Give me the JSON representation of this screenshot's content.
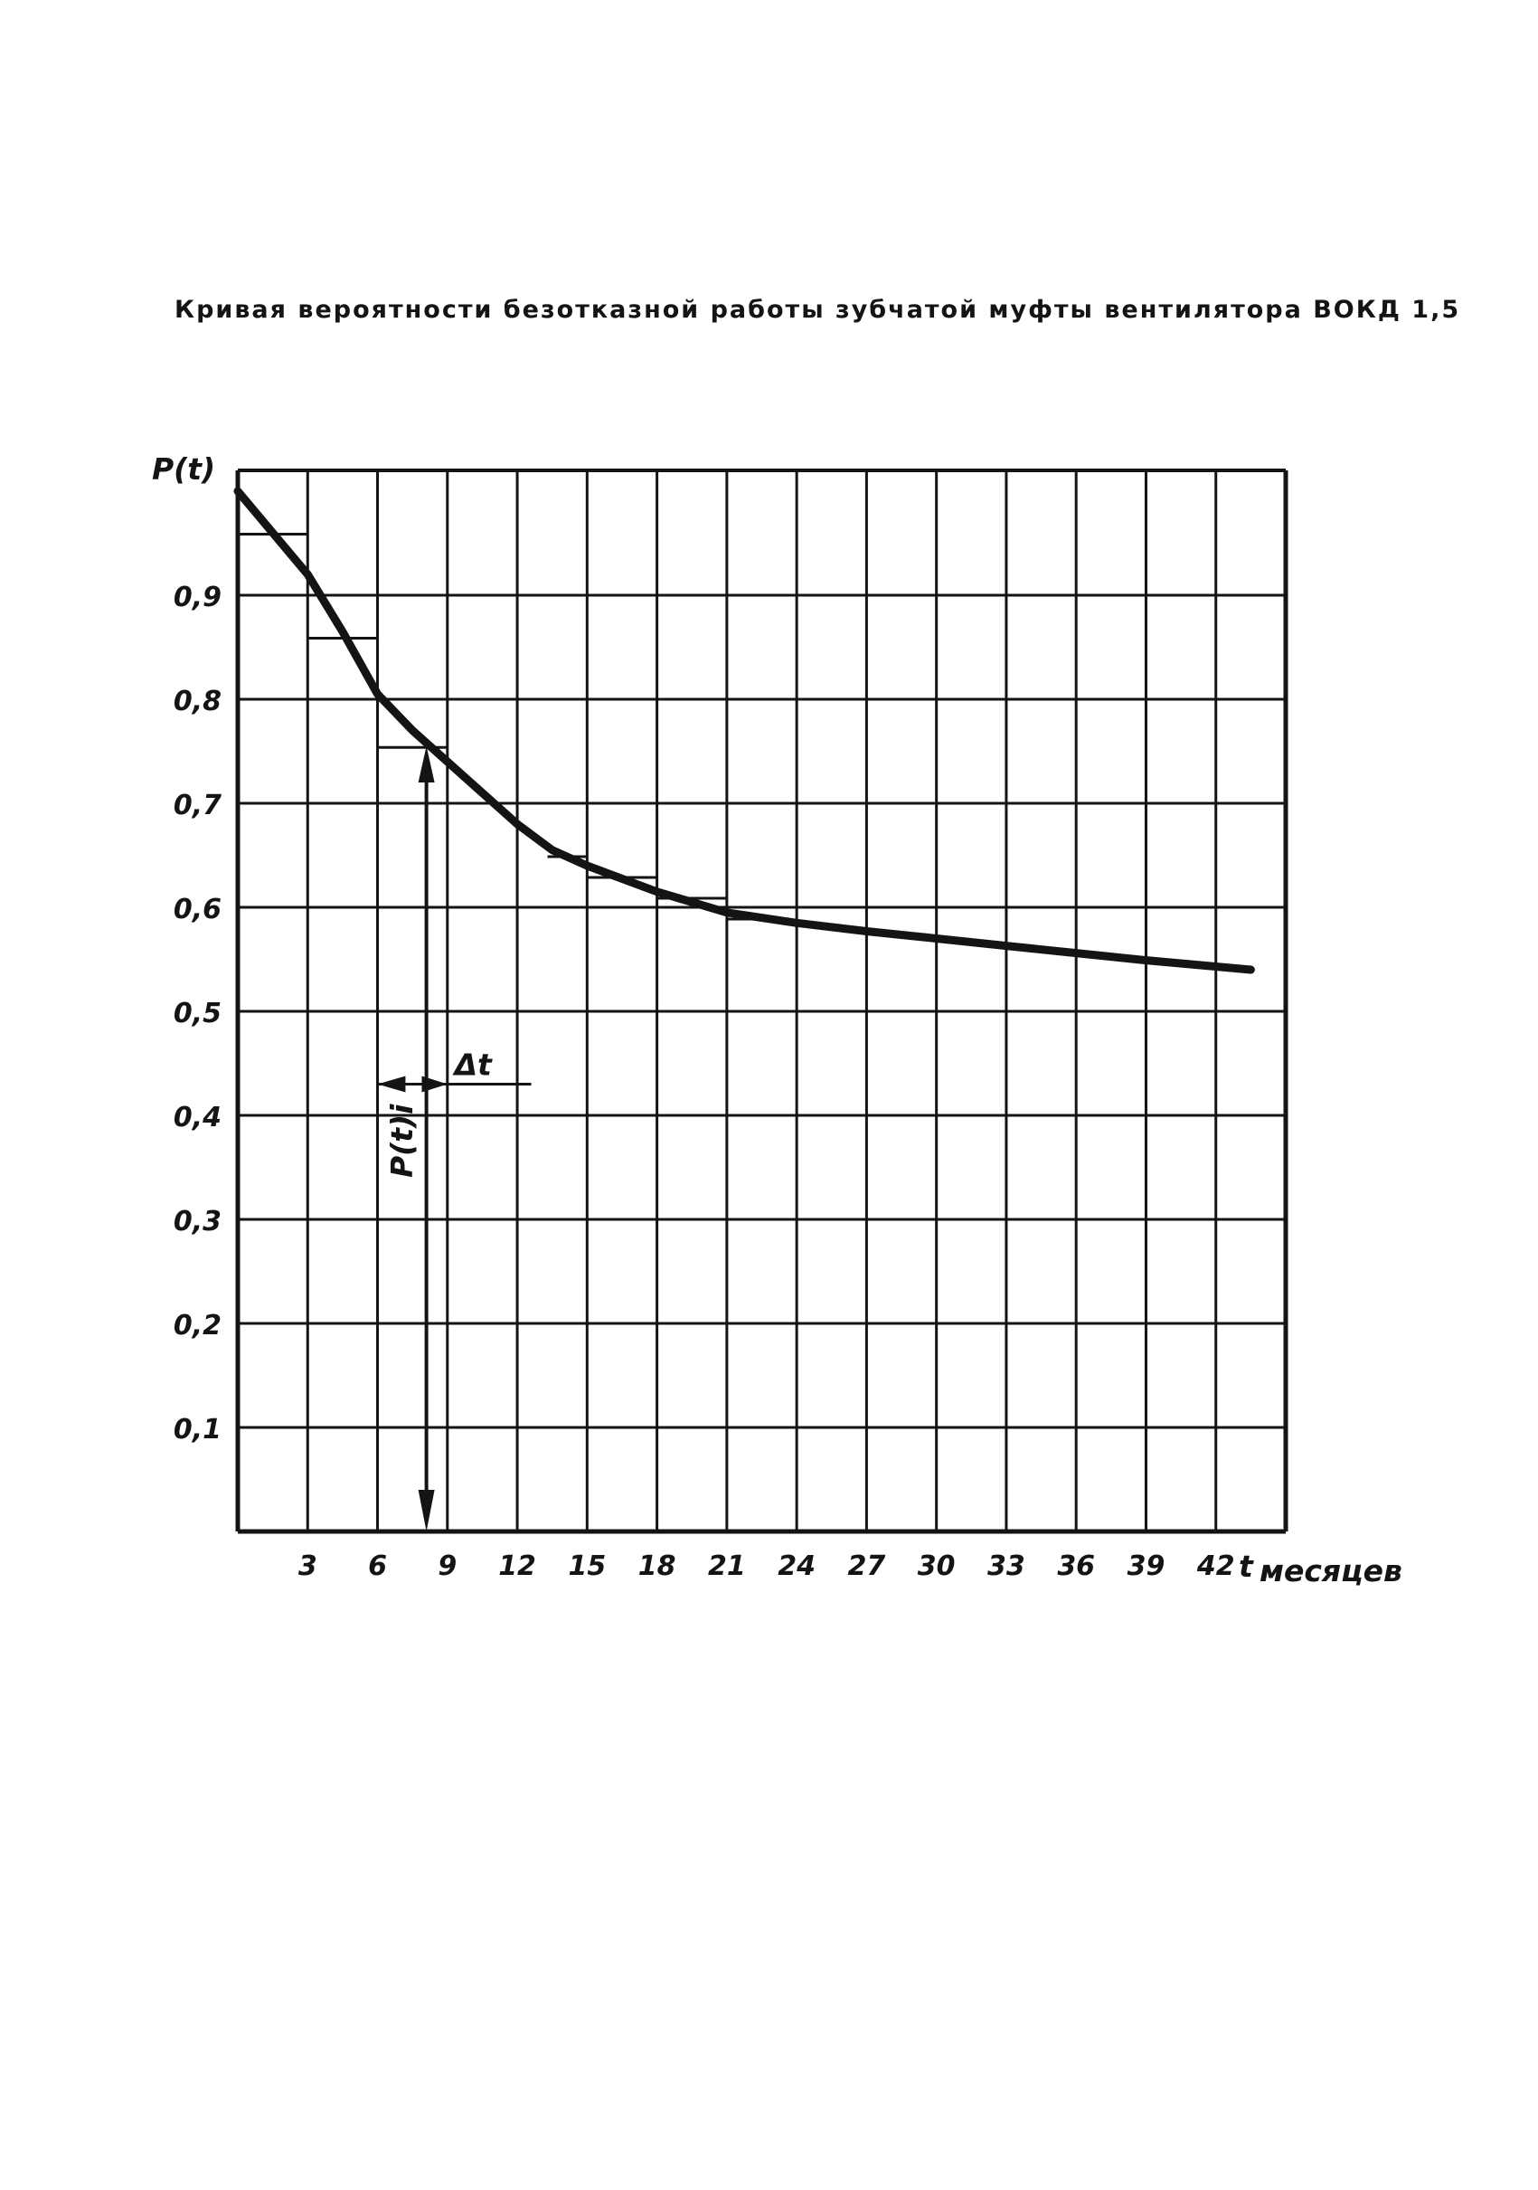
{
  "page": {
    "title": "Кривая вероятности безотказной работы зубчатой муфты вентилятора ВОКД 1,5"
  },
  "chart_data": {
    "type": "line",
    "title": "Кривая вероятности безотказной работы зубчатой муфты вентилятора ВОКД 1,5",
    "ylabel": "P(t)",
    "xlabel_symbol": "t",
    "xlabel_unit": "месяцев",
    "xlim": [
      0,
      45
    ],
    "ylim": [
      0,
      1.02
    ],
    "grid": true,
    "x_ticks": [
      "3",
      "6",
      "9",
      "12",
      "15",
      "18",
      "21",
      "24",
      "27",
      "30",
      "33",
      "36",
      "39",
      "42"
    ],
    "y_ticks": [
      "0,1",
      "0,2",
      "0,3",
      "0,4",
      "0,5",
      "0,6",
      "0,7",
      "0,8",
      "0,9"
    ],
    "series": [
      {
        "x": [
          0,
          1.5,
          3,
          4.5,
          6,
          7.5,
          9,
          10.5,
          12,
          13.5,
          15,
          18,
          21,
          24,
          27,
          30,
          33,
          36,
          39,
          43.5
        ],
        "values": [
          1.0,
          0.96,
          0.92,
          0.865,
          0.805,
          0.77,
          0.74,
          0.71,
          0.68,
          0.655,
          0.64,
          0.615,
          0.595,
          0.585,
          0.577,
          0.57,
          0.563,
          0.556,
          0.549,
          0.54
        ]
      }
    ],
    "step_histogram": [
      {
        "x0": 0,
        "x1": 3,
        "y": 0.96
      },
      {
        "x0": 3,
        "x1": 6,
        "y": 0.86
      },
      {
        "x0": 6,
        "x1": 9,
        "y": 0.755
      },
      {
        "x0": 13.3,
        "x1": 15,
        "y": 0.65
      },
      {
        "x0": 15,
        "x1": 18,
        "y": 0.63
      },
      {
        "x0": 18,
        "x1": 21,
        "y": 0.61
      },
      {
        "x0": 21,
        "x1": 23,
        "y": 0.59
      }
    ],
    "annotations": [
      {
        "text": "Δt",
        "role": "interval-width"
      },
      {
        "text": "P(t)i",
        "role": "ordinate"
      }
    ],
    "colors": {
      "ink": "#141414",
      "background": "#ffffff"
    }
  }
}
